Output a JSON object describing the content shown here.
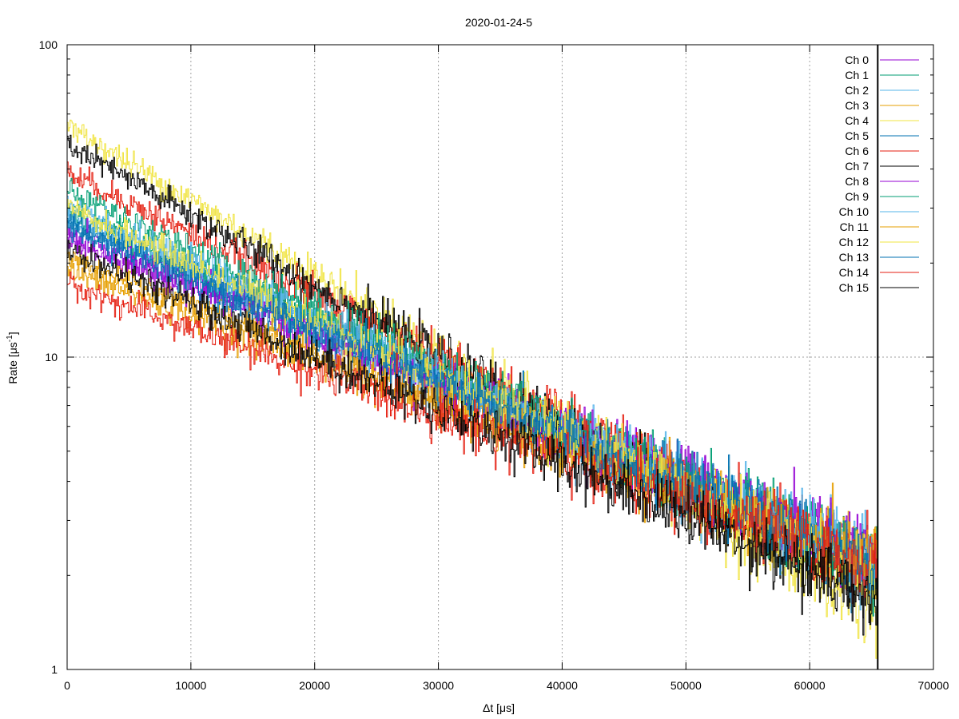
{
  "chart_data": {
    "type": "line",
    "title": "2020-01-24-5",
    "xlabel": "Δt [μs]",
    "ylabel_main": "Rate [μs",
    "ylabel_sup": "-1",
    "ylabel_close": "]",
    "xlim": [
      0,
      70000
    ],
    "ylim": [
      1,
      100
    ],
    "yscale": "log",
    "x_ticks": [
      0,
      10000,
      20000,
      30000,
      40000,
      50000,
      60000,
      70000
    ],
    "y_ticks": [
      1,
      10,
      100
    ],
    "grid": true,
    "legend_position": "top-right",
    "data_x_max": 65500,
    "series": [
      {
        "name": "Ch 0",
        "color": "#9400d3",
        "start": 25,
        "end": 2.3
      },
      {
        "name": "Ch 1",
        "color": "#009e73",
        "start": 29,
        "end": 2.2
      },
      {
        "name": "Ch 2",
        "color": "#56b4e9",
        "start": 28,
        "end": 2.2
      },
      {
        "name": "Ch 3",
        "color": "#e69f00",
        "start": 21,
        "end": 2.2
      },
      {
        "name": "Ch 4",
        "color": "#f0e442",
        "start": 55,
        "end": 1.5
      },
      {
        "name": "Ch 5",
        "color": "#0072b2",
        "start": 27,
        "end": 2.1
      },
      {
        "name": "Ch 6",
        "color": "#e51e10",
        "start": 39,
        "end": 2.0
      },
      {
        "name": "Ch 7",
        "color": "#000000",
        "start": 48,
        "end": 1.6
      },
      {
        "name": "Ch 8",
        "color": "#9400d3",
        "start": 24,
        "end": 2.3
      },
      {
        "name": "Ch 9",
        "color": "#009e73",
        "start": 34,
        "end": 2.0
      },
      {
        "name": "Ch 10",
        "color": "#56b4e9",
        "start": 30,
        "end": 2.1
      },
      {
        "name": "Ch 11",
        "color": "#e69f00",
        "start": 19,
        "end": 2.2
      },
      {
        "name": "Ch 12",
        "color": "#f0e442",
        "start": 30,
        "end": 2.0
      },
      {
        "name": "Ch 13",
        "color": "#0072b2",
        "start": 26,
        "end": 2.1
      },
      {
        "name": "Ch 14",
        "color": "#e51e10",
        "start": 17,
        "end": 2.1
      },
      {
        "name": "Ch 15",
        "color": "#000000",
        "start": 22,
        "end": 1.7
      }
    ]
  }
}
